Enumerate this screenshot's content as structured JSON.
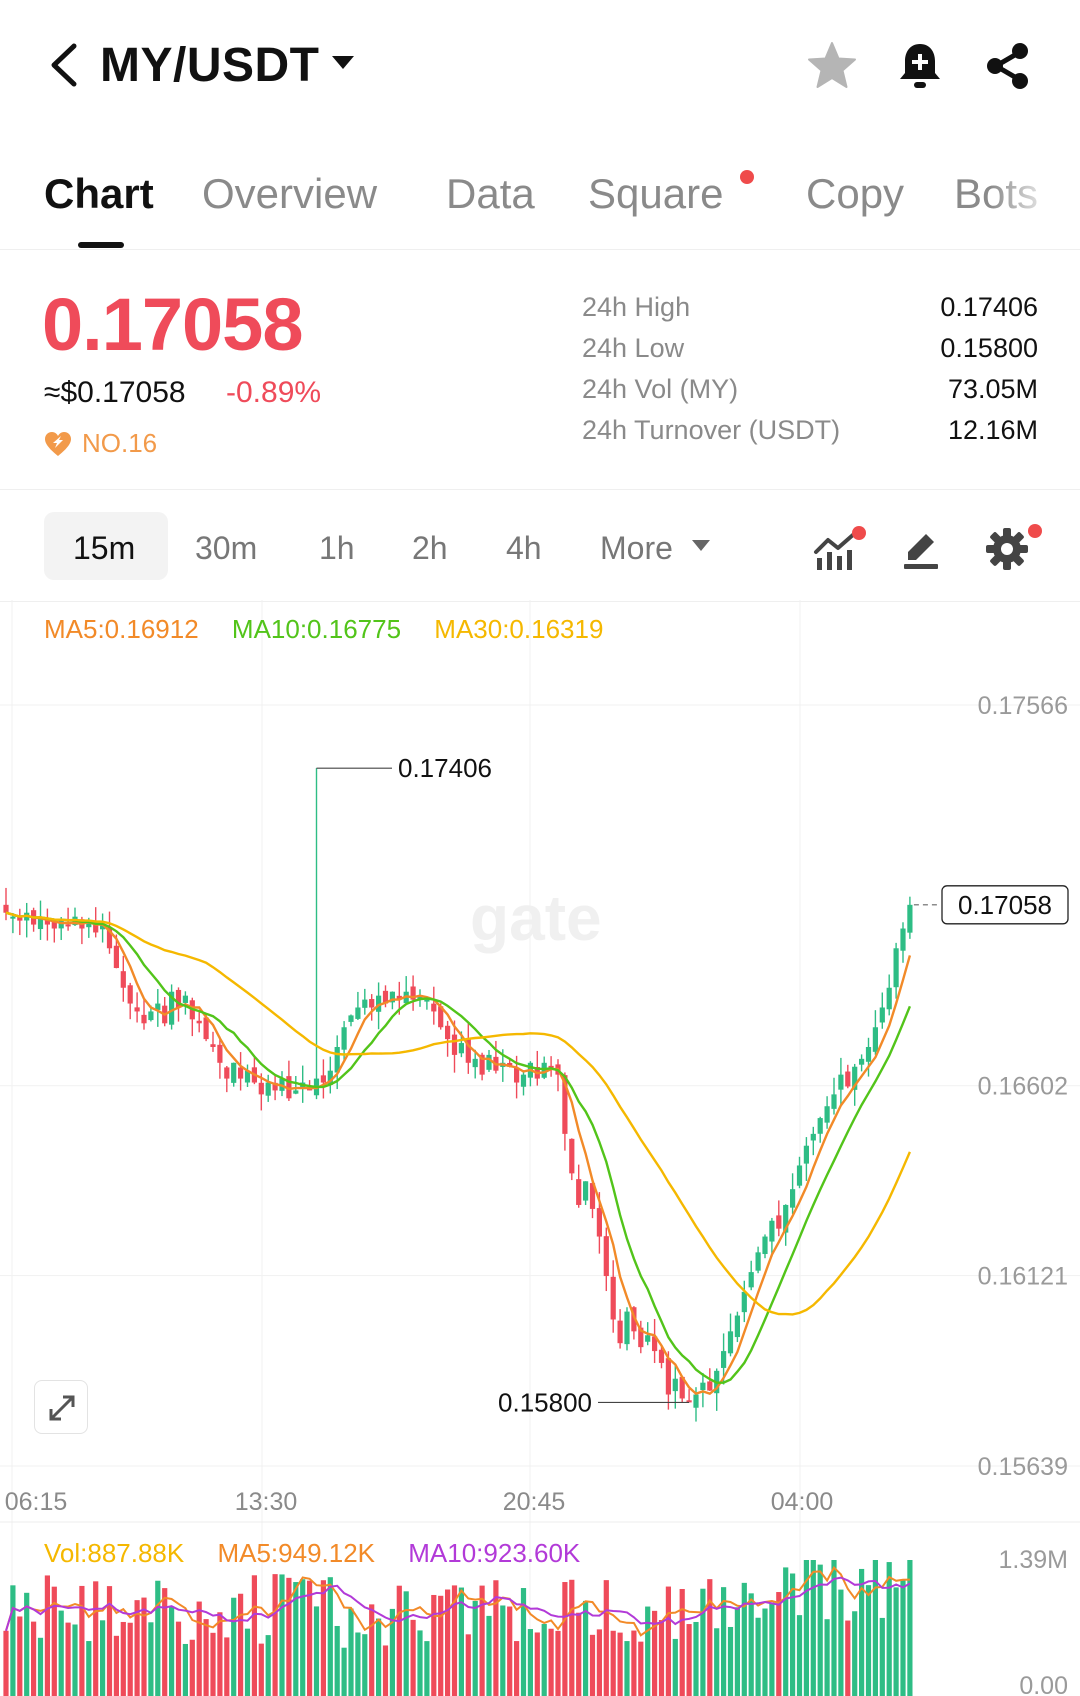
{
  "header": {
    "pair": "MY/USDT",
    "icons": [
      "back-arrow-icon",
      "caret-down-icon",
      "star-icon",
      "bell-plus-icon",
      "share-icon"
    ]
  },
  "tabs": [
    {
      "label": "Chart",
      "active": true
    },
    {
      "label": "Overview"
    },
    {
      "label": "Data"
    },
    {
      "label": "Square",
      "badge": true
    },
    {
      "label": "Copy"
    },
    {
      "label": "Bots"
    }
  ],
  "price": {
    "last": "0.17058",
    "fiat": "≈$0.17058",
    "change": "-0.89%",
    "rank": "NO.16",
    "stats": [
      {
        "label": "24h High",
        "value": "0.17406"
      },
      {
        "label": "24h Low",
        "value": "0.15800"
      },
      {
        "label": "24h Vol (MY)",
        "value": "73.05M"
      },
      {
        "label": "24h Turnover (USDT)",
        "value": "12.16M"
      }
    ]
  },
  "intervals": {
    "items": [
      "15m",
      "30m",
      "1h",
      "2h",
      "4h"
    ],
    "active": "15m",
    "more": "More"
  },
  "ma_legend": {
    "ma5": "MA5:0.16912",
    "ma10": "MA10:0.16775",
    "ma30": "MA30:0.16319"
  },
  "vol_legend": {
    "vol": "Vol:887.88K",
    "ma5": "MA5:949.12K",
    "ma10": "MA10:923.60K"
  },
  "colors": {
    "up": "#2ebd85",
    "down": "#ef4b5a",
    "ma5": "#f28a28",
    "ma10": "#52c41a",
    "ma30": "#f5b800",
    "vol_ma10": "#b23ad8"
  },
  "chart_data": {
    "type": "candlestick",
    "y_axis_labels": [
      "0.17566",
      "0.16602",
      "0.16121",
      "0.15639"
    ],
    "y_axis_values": [
      0.17566,
      0.16602,
      0.16121,
      0.15639
    ],
    "x_axis_labels": [
      "06:15",
      "13:30",
      "20:45",
      "04:00"
    ],
    "high_marker": "0.17406",
    "low_marker": "0.15800",
    "current_price_label": "0.17058",
    "volume_axis_labels": [
      "1.39M",
      "0.00"
    ],
    "closes": [
      0.1704,
      0.1703,
      0.1702,
      0.1704,
      0.1701,
      0.1703,
      0.1701,
      0.17,
      0.1702,
      0.1701,
      0.1703,
      0.17,
      0.1702,
      0.1699,
      0.1701,
      0.1695,
      0.169,
      0.1685,
      0.1681,
      0.1679,
      0.1676,
      0.1679,
      0.1681,
      0.1676,
      0.1684,
      0.168,
      0.1683,
      0.1677,
      0.1676,
      0.1672,
      0.167,
      0.1666,
      0.1662,
      0.1666,
      0.1662,
      0.1664,
      0.1661,
      0.1658,
      0.1661,
      0.1659,
      0.1662,
      0.1657,
      0.1659,
      0.1661,
      0.1659,
      0.1662,
      0.1661,
      0.1664,
      0.167,
      0.1675,
      0.1678,
      0.168,
      0.1682,
      0.168,
      0.1683,
      0.1681,
      0.1684,
      0.1682,
      0.1684,
      0.1682,
      0.1683,
      0.1682,
      0.1679,
      0.1675,
      0.1672,
      0.1668,
      0.1671,
      0.1666,
      0.1667,
      0.1663,
      0.1668,
      0.1664,
      0.1666,
      0.1665,
      0.1661,
      0.1663,
      0.1666,
      0.1662,
      0.1666,
      0.1665,
      0.1663,
      0.1648,
      0.1638,
      0.163,
      0.1636,
      0.1629,
      0.1622,
      0.1612,
      0.1601,
      0.1595,
      0.1603,
      0.1598,
      0.1594,
      0.1597,
      0.1593,
      0.159,
      0.1582,
      0.1586,
      0.1581,
      0.158,
      0.1582,
      0.1585,
      0.1583,
      0.1588,
      0.1593,
      0.1598,
      0.1602,
      0.1608,
      0.1613,
      0.1618,
      0.1622,
      0.1626,
      0.1624,
      0.163,
      0.1634,
      0.164,
      0.1645,
      0.1648,
      0.1652,
      0.1655,
      0.1658,
      0.1663,
      0.166,
      0.1665,
      0.1667,
      0.167,
      0.1675,
      0.168,
      0.1685,
      0.1695,
      0.17,
      0.1706
    ]
  }
}
